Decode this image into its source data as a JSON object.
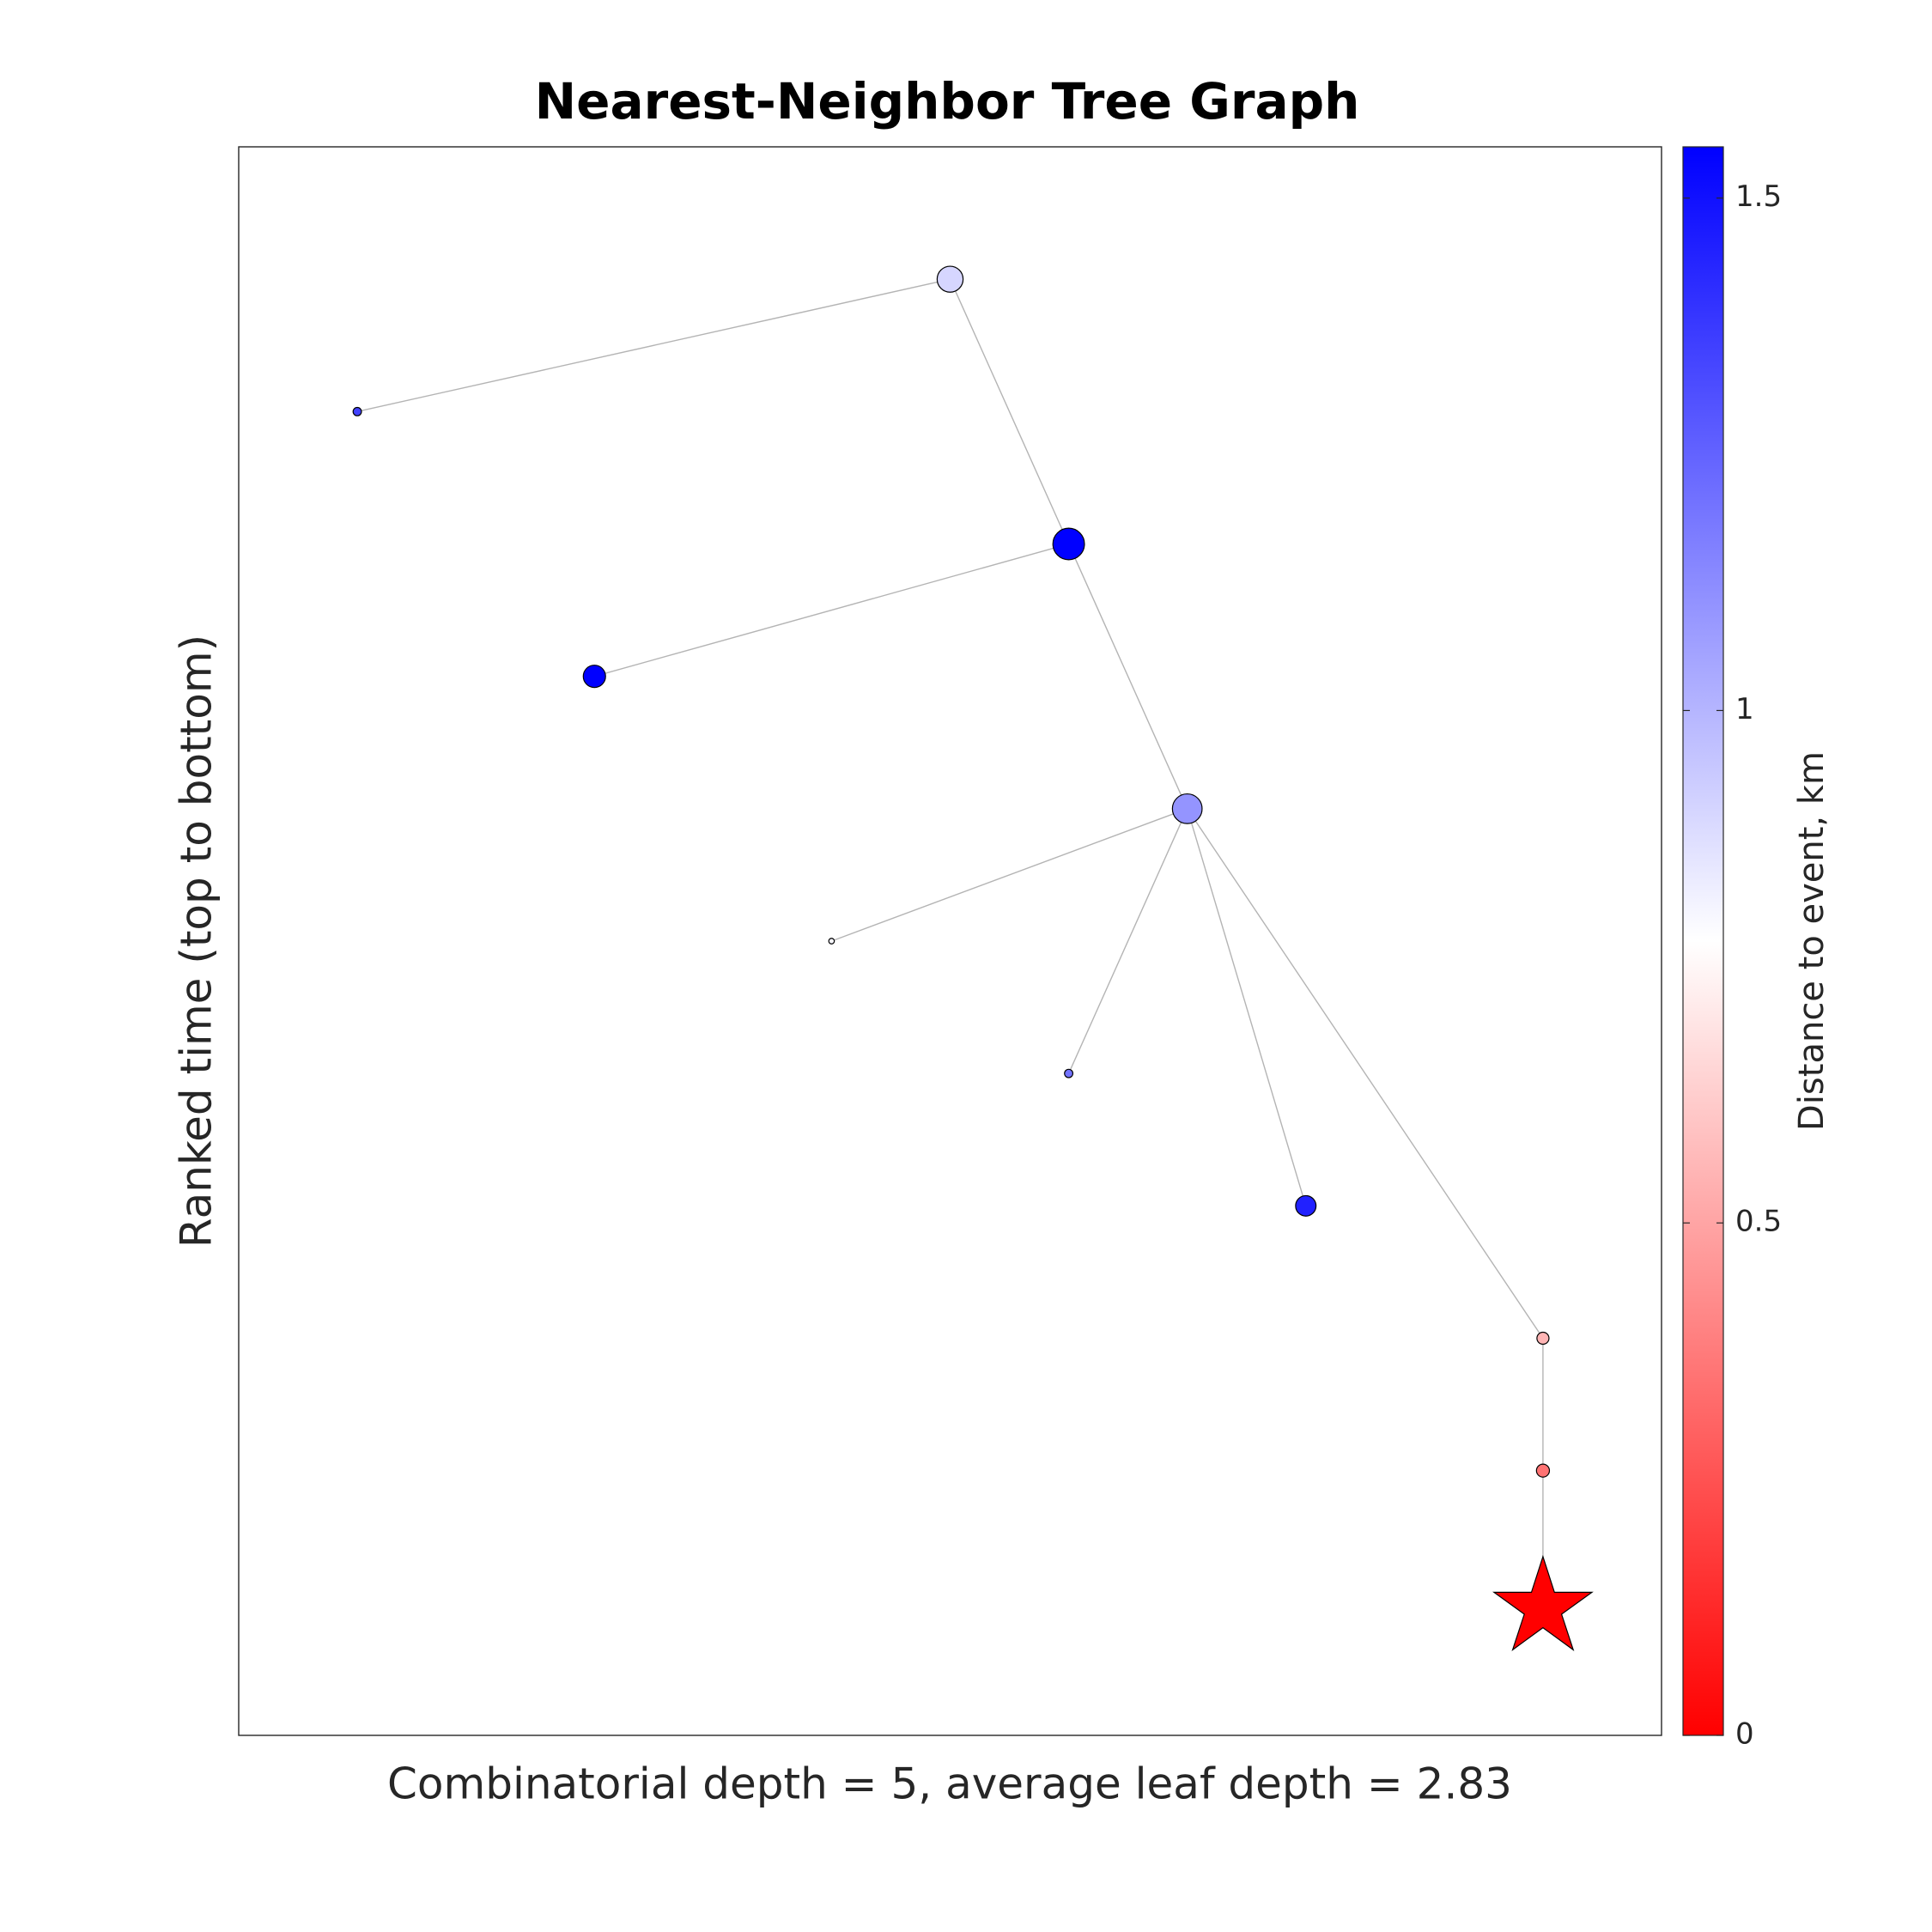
{
  "chart_data": {
    "type": "scatter",
    "title": "Nearest-Neighbor Tree Graph",
    "xlabel": "Combinatorial depth = 5, average leaf depth = 2.83",
    "ylabel": "Ranked time (top to bottom)",
    "xlim": [
      0,
      12
    ],
    "ylim": [
      0,
      12
    ],
    "y_reversed": true,
    "grid": false,
    "colorbar": {
      "label": "Distance to event, km",
      "range": [
        0,
        1.55
      ],
      "ticks": [
        0,
        0.5,
        1,
        1.5
      ],
      "tick_labels": [
        "0",
        "0.5",
        "1",
        "1.5"
      ],
      "color_low": "#ff0000",
      "color_mid": "#ffffff",
      "color_high": "#0000ff",
      "mid_value": 0.775
    },
    "nodes": [
      {
        "id": 1,
        "rank": 1,
        "depth_x": 6.0,
        "distance_km": 0.9,
        "size": 28,
        "marker": "circle"
      },
      {
        "id": 2,
        "rank": 2,
        "depth_x": 1.0,
        "distance_km": 1.35,
        "size": 9,
        "marker": "circle"
      },
      {
        "id": 3,
        "rank": 3,
        "depth_x": 7.0,
        "distance_km": 1.55,
        "size": 34,
        "marker": "circle"
      },
      {
        "id": 4,
        "rank": 4,
        "depth_x": 3.0,
        "distance_km": 1.55,
        "size": 24,
        "marker": "circle"
      },
      {
        "id": 5,
        "rank": 5,
        "depth_x": 8.0,
        "distance_km": 1.1,
        "size": 32,
        "marker": "circle"
      },
      {
        "id": 6,
        "rank": 6,
        "depth_x": 5.0,
        "distance_km": 0.8,
        "size": 6,
        "marker": "circle"
      },
      {
        "id": 7,
        "rank": 7,
        "depth_x": 7.0,
        "distance_km": 1.2,
        "size": 9,
        "marker": "circle"
      },
      {
        "id": 8,
        "rank": 8,
        "depth_x": 9.0,
        "distance_km": 1.45,
        "size": 22,
        "marker": "circle"
      },
      {
        "id": 9,
        "rank": 9,
        "depth_x": 11.0,
        "distance_km": 0.55,
        "size": 13,
        "marker": "circle"
      },
      {
        "id": 10,
        "rank": 10,
        "depth_x": 11.0,
        "distance_km": 0.35,
        "size": 14,
        "marker": "circle"
      },
      {
        "id": 11,
        "rank": 11,
        "depth_x": 11.0,
        "distance_km": 0.0,
        "size": 80,
        "marker": "star"
      }
    ],
    "edges": [
      [
        1,
        2
      ],
      [
        1,
        3
      ],
      [
        3,
        4
      ],
      [
        3,
        5
      ],
      [
        5,
        6
      ],
      [
        5,
        7
      ],
      [
        5,
        8
      ],
      [
        5,
        9
      ],
      [
        9,
        10
      ],
      [
        10,
        11
      ]
    ]
  }
}
